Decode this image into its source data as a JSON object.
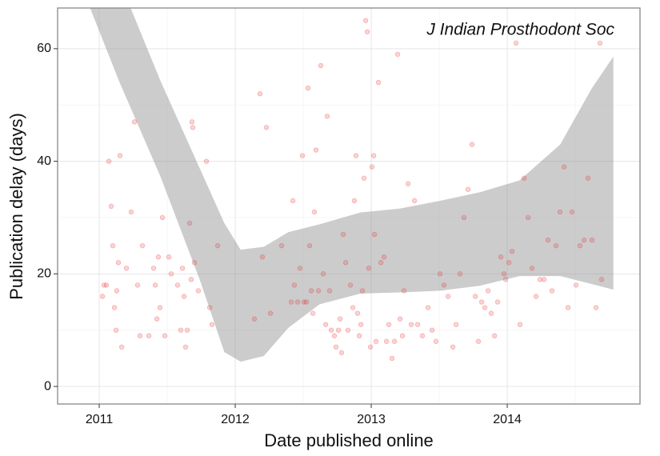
{
  "chart_data": {
    "type": "scatter",
    "annotation": "J Indian Prosthodont Soc",
    "x_label": "Date published online",
    "y_label": "Publication delay (days)",
    "xlim": [
      2010.694,
      2014.976
    ],
    "ylim": [
      -3.12,
      67.23
    ],
    "xticks": [
      2011,
      2012,
      2013,
      2014
    ],
    "yticks": [
      0,
      20,
      40,
      60
    ],
    "xminor": [
      2011.5,
      2012.5,
      2013.5,
      2014.5
    ],
    "yminor": [
      10,
      30,
      50
    ],
    "grid": true,
    "points": {
      "color": "#e8292b",
      "x": [
        2011.024,
        2011.035,
        2011.053,
        2011.071,
        2011.088,
        2011.1,
        2011.112,
        2011.124,
        2011.129,
        2011.141,
        2011.153,
        2011.165,
        2011.2,
        2011.235,
        2011.259,
        2011.282,
        2011.3,
        2011.318,
        2011.365,
        2011.4,
        2011.412,
        2011.424,
        2011.435,
        2011.447,
        2011.465,
        2011.482,
        2011.512,
        2011.529,
        2011.576,
        2011.6,
        2011.612,
        2011.624,
        2011.635,
        2011.647,
        2011.665,
        2011.676,
        2011.682,
        2011.688,
        2011.7,
        2011.729,
        2011.788,
        2011.812,
        2011.829,
        2011.871,
        2012.141,
        2012.182,
        2012.2,
        2012.229,
        2012.259,
        2012.341,
        2012.412,
        2012.424,
        2012.435,
        2012.459,
        2012.476,
        2012.494,
        2012.506,
        2012.524,
        2012.535,
        2012.547,
        2012.559,
        2012.571,
        2012.582,
        2012.594,
        2012.612,
        2012.629,
        2012.647,
        2012.665,
        2012.676,
        2012.694,
        2012.706,
        2012.729,
        2012.741,
        2012.759,
        2012.771,
        2012.782,
        2012.794,
        2012.812,
        2012.829,
        2012.847,
        2012.865,
        2012.876,
        2012.888,
        2012.9,
        2012.912,
        2012.924,
        2012.935,
        2012.947,
        2012.959,
        2012.971,
        2012.982,
        2012.994,
        2013.006,
        2013.018,
        2013.024,
        2013.035,
        2013.053,
        2013.071,
        2013.094,
        2013.112,
        2013.129,
        2013.153,
        2013.171,
        2013.194,
        2013.212,
        2013.229,
        2013.241,
        2013.271,
        2013.294,
        2013.318,
        2013.341,
        2013.376,
        2013.418,
        2013.447,
        2013.476,
        2013.506,
        2013.535,
        2013.565,
        2013.6,
        2013.624,
        2013.653,
        2013.682,
        2013.712,
        2013.741,
        2013.765,
        2013.788,
        2013.812,
        2013.835,
        2013.859,
        2013.882,
        2013.906,
        2013.929,
        2013.953,
        2013.976,
        2013.988,
        2014.012,
        2014.035,
        2014.065,
        2014.094,
        2014.124,
        2014.153,
        2014.182,
        2014.212,
        2014.241,
        2014.271,
        2014.3,
        2014.329,
        2014.359,
        2014.388,
        2014.418,
        2014.447,
        2014.476,
        2014.506,
        2014.535,
        2014.565,
        2014.594,
        2014.624,
        2014.653,
        2014.682,
        2014.694
      ],
      "values": [
        16,
        18,
        18,
        40,
        32,
        25,
        14,
        10,
        17,
        22,
        41,
        7,
        21,
        31,
        47,
        18,
        9,
        25,
        9,
        21,
        18,
        12,
        23,
        14,
        30,
        9,
        23,
        20,
        18,
        10,
        21,
        16,
        7,
        10,
        29,
        19,
        47,
        46,
        22,
        17,
        40,
        14,
        11,
        25,
        12,
        52,
        23,
        46,
        13,
        25,
        15,
        33,
        18,
        15,
        21,
        41,
        15,
        15,
        53,
        25,
        17,
        13,
        31,
        42,
        17,
        57,
        20,
        11,
        48,
        17,
        10,
        9,
        7,
        10,
        12,
        6,
        27,
        22,
        10,
        18,
        14,
        33,
        41,
        13,
        9,
        11,
        17,
        37,
        65,
        63,
        21,
        7,
        39,
        41,
        27,
        8,
        54,
        22,
        23,
        8,
        11,
        5,
        8,
        59,
        12,
        9,
        17,
        36,
        11,
        33,
        11,
        9,
        14,
        10,
        8,
        20,
        18,
        16,
        7,
        11,
        20,
        30,
        35,
        43,
        16,
        8,
        15,
        14,
        17,
        13,
        9,
        15,
        23,
        20,
        19,
        22,
        24,
        61,
        11,
        37,
        30,
        21,
        16,
        19,
        19,
        26,
        17,
        25,
        31,
        39,
        14,
        31,
        18,
        25,
        26,
        37,
        26,
        14,
        61,
        19
      ]
    },
    "band": {
      "color": "#999999",
      "x": [
        2010.92,
        2011.15,
        2011.45,
        2011.74,
        2011.92,
        2012.04,
        2012.21,
        2012.39,
        2012.62,
        2012.92,
        2013.21,
        2013.51,
        2013.8,
        2014.09,
        2014.39,
        2014.62,
        2014.78
      ],
      "upper": [
        90,
        72,
        54.3,
        38.7,
        29,
        24.3,
        24.8,
        27.4,
        28.8,
        30.9,
        31.6,
        33,
        34.5,
        36.6,
        43,
        52.9,
        58.6
      ],
      "lower": [
        68,
        54,
        37.3,
        18.9,
        6.1,
        4.4,
        5.4,
        10.4,
        14.6,
        16.5,
        16.7,
        17,
        17.9,
        19.6,
        19.6,
        18.2,
        17.2
      ]
    }
  }
}
